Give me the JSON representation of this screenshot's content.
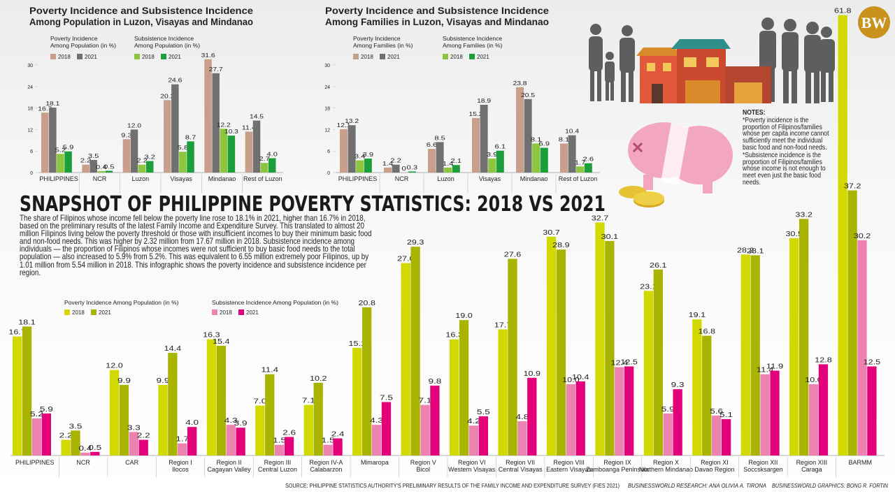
{
  "headline": "SNAPSHOT OF PHILIPPINE POVERTY STATISTICS: 2018 VS 2021",
  "body": "The share of Filipinos whose income fell below the poverty line rose to 18.1% in 2021, higher than 16.7% in 2018, based on the preliminary results of the latest Family Income and Expenditure Survey. This translated to almost 20 million Filipinos living below the poverty threshold or those with insufficient incomes to buy their minimum basic food and non-food needs. This was higher by 2.32 million from 17.67 million in 2018. Subsistence incidence among individuals — the proportion of Filipinos whose incomes were not sufficient to buy basic food needs to the total population — also increased to 5.9% from 5.2%. This was equivalent to 6.55 million extremely poor Filipinos, up by 1.01 million from 5.54 million in 2018. This infographic shows the poverty incidence and subsistence incidence per region.",
  "logo": "BW",
  "notes": {
    "heading": "NOTES:",
    "items": [
      "*Poverty incidence is the proportion of Filipinos/families whose per capita income cannot sufficiently meet the individual basic food and non-food needs.",
      "*Subsistence incidence is the proportion of Filipinos/families whose income is not enough to meet even just the basic food needs."
    ]
  },
  "footer": {
    "source": "SOURCE: PHILIPPINE STATISTICS AUTHORITY'S PRELIMINARY RESULTS OF THE FAMILY INCOME AND EXPENDITURE SURVEY (FIES 2021)",
    "research": "BUSINESSWORLD RESEARCH: ANA OLIVIA A. TIRONA",
    "graphics": "BUSINESSWORLD GRAPHICS: BONG R. FORTIN"
  },
  "chart_data": [
    {
      "type": "bar",
      "title": [
        "Poverty Incidence and Subsistence Incidence",
        "Among Population in Luzon, Visayas and Mindanao"
      ],
      "legend_groups": [
        [
          "Poverty Incidence",
          "Among Population (in %)"
        ],
        [
          "Subsistence Incidence",
          "Among Population (in %)"
        ]
      ],
      "categories": [
        "PHILIPPINES",
        "NCR",
        "Luzon",
        "Visayas",
        "Mindanao",
        "Rest of Luzon"
      ],
      "ylim": [
        0,
        30
      ],
      "yticks": [
        0,
        6,
        12,
        18,
        24,
        30
      ],
      "series": [
        {
          "name": "2018",
          "color": "#c99f8c",
          "values": [
            16.7,
            2.2,
            9.3,
            20.2,
            31.6,
            11.4
          ],
          "value_labels": [
            "16.7",
            "2.2",
            "9.3",
            "20.2",
            "31.6",
            "11.4"
          ]
        },
        {
          "name": "2021",
          "color": "#707070",
          "values": [
            18.1,
            3.5,
            12.0,
            24.6,
            27.7,
            14.5
          ],
          "value_labels": [
            "18.1",
            "3.5",
            "12.0",
            "24.6",
            "27.7",
            "14.5"
          ]
        },
        {
          "name": "2018",
          "color": "#8cc63e",
          "values": [
            5.2,
            0.4,
            2.2,
            5.8,
            12.2,
            2.7
          ],
          "value_labels": [
            "5.2",
            "0.4",
            "2.2",
            "5.8",
            "12.2",
            "2.7"
          ]
        },
        {
          "name": "2021",
          "color": "#1c9e3a",
          "values": [
            5.9,
            0.5,
            3.2,
            8.7,
            10.3,
            4.0
          ],
          "value_labels": [
            "5.9",
            "0.5",
            "3.2",
            "8.7",
            "10.3",
            "4.0"
          ]
        }
      ]
    },
    {
      "type": "bar",
      "title": [
        "Poverty Incidence and Subsistence Incidence",
        "Among Families in Luzon, Visayas and Mindanao"
      ],
      "legend_groups": [
        [
          "Poverty Incidence",
          "Among Families (in %)"
        ],
        [
          "Subsistence Incidence",
          "Among Families (in %)"
        ]
      ],
      "categories": [
        "PHILIPPINES",
        "NCR",
        "Luzon",
        "Visayas",
        "Mindanao",
        "Rest of Luzon"
      ],
      "ylim": [
        0,
        30
      ],
      "yticks": [
        0,
        6,
        12,
        18,
        24,
        30
      ],
      "series": [
        {
          "name": "2018",
          "color": "#c99f8c",
          "values": [
            12.1,
            1.4,
            6.6,
            15.2,
            23.8,
            8.1
          ],
          "value_labels": [
            "12.1",
            "1.4",
            "6.6",
            "15.2",
            "23.8",
            "8.1"
          ]
        },
        {
          "name": "2021",
          "color": "#707070",
          "values": [
            13.2,
            2.2,
            8.5,
            18.9,
            20.5,
            10.4
          ],
          "value_labels": [
            "13.2",
            "2.2",
            "8.5",
            "18.9",
            "20.5",
            "10.4"
          ]
        },
        {
          "name": "2018",
          "color": "#8cc63e",
          "values": [
            3.4,
            0,
            1.4,
            3.9,
            8.1,
            1.7
          ],
          "value_labels": [
            "3.4",
            "0",
            "1.4",
            "3.9",
            "8.1",
            "1.7"
          ]
        },
        {
          "name": "2021",
          "color": "#1c9e3a",
          "values": [
            3.9,
            0.3,
            2.1,
            6.1,
            6.9,
            2.6
          ],
          "value_labels": [
            "3.9",
            "0.3",
            "2.1",
            "6.1",
            "6.9",
            "2.6"
          ]
        }
      ]
    },
    {
      "type": "bar",
      "legend_groups": [
        [
          "Poverty Incidence Among Population (in %)"
        ],
        [
          "Subsistence Incidence Among Population (in %)"
        ]
      ],
      "categories": [
        "PHILIPPINES",
        "NCR",
        "CAR",
        "Region I\nIlocos",
        "Region II\nCagayan Valley",
        "Region III\nCentral Luzon",
        "Region IV-A\nCalabarzon",
        "Mimaropa",
        "Region V\nBicol",
        "Region VI\nWestern Visayas",
        "Region VII\nCentral Visayas",
        "Region VIII\nEastern Visayas",
        "Region IX\nZamboanga Peninsula",
        "Region X\nNorthern Mindanao",
        "Region XI\nDavao Region",
        "Region XII\nSoccsksargen",
        "Region XIII\nCaraga",
        "BARMM"
      ],
      "series": [
        {
          "name": "2018",
          "color": "#d2d900",
          "values": [
            16.7,
            2.2,
            12.0,
            9.9,
            16.3,
            7.0,
            7.1,
            15.1,
            27.0,
            16.3,
            17.7,
            30.7,
            32.7,
            23.1,
            19.1,
            28.2,
            30.5,
            61.8
          ],
          "value_labels": [
            "16.7",
            "2.2",
            "12.0",
            "9.9",
            "16.3",
            "7.0",
            "7.1",
            "15.1",
            "27.0",
            "16.3",
            "17.7",
            "30.7",
            "32.7",
            "23.1",
            "19.1",
            "28.2",
            "30.5",
            "61.8"
          ]
        },
        {
          "name": "2021",
          "color": "#a8b400",
          "values": [
            18.1,
            3.5,
            9.9,
            14.4,
            15.4,
            11.4,
            10.2,
            20.8,
            29.3,
            19.0,
            27.6,
            28.9,
            30.1,
            26.1,
            16.8,
            28.1,
            33.2,
            37.2
          ],
          "value_labels": [
            "18.1",
            "3.5",
            "9.9",
            "14.4",
            "15.4",
            "11.4",
            "10.2",
            "20.8",
            "29.3",
            "19.0",
            "27.6",
            "28.9",
            "30.1",
            "26.1",
            "16.8",
            "28.1",
            "33.2",
            "37.2"
          ]
        },
        {
          "name": "2018",
          "color": "#ec82b0",
          "values": [
            5.2,
            0.4,
            3.3,
            1.7,
            4.3,
            1.5,
            1.5,
            4.3,
            7.1,
            4.2,
            4.8,
            10.0,
            12.4,
            5.9,
            5.6,
            11.4,
            10.0,
            30.2
          ],
          "value_labels": [
            "5.2",
            "0.4",
            "3.3",
            "1.7",
            "4.3",
            "1.5",
            "1.5",
            "4.3",
            "7.1",
            "4.2",
            "4.8",
            "10.0",
            "12.4",
            "5.9",
            "5.6",
            "11.4",
            "10.0",
            "30.2"
          ]
        },
        {
          "name": "2021",
          "color": "#e2007b",
          "values": [
            5.9,
            0.5,
            2.2,
            4.0,
            3.9,
            2.6,
            2.4,
            7.5,
            9.8,
            5.5,
            10.9,
            10.4,
            12.5,
            9.3,
            5.1,
            11.9,
            12.8,
            12.5
          ],
          "value_labels": [
            "5.9",
            "0.5",
            "2.2",
            "4.0",
            "3.9",
            "2.6",
            "2.4",
            "7.5",
            "9.8",
            "5.5",
            "10.9",
            "10.4",
            "12.5",
            "9.3",
            "5.1",
            "11.9",
            "12.8",
            "12.5"
          ]
        }
      ]
    }
  ]
}
